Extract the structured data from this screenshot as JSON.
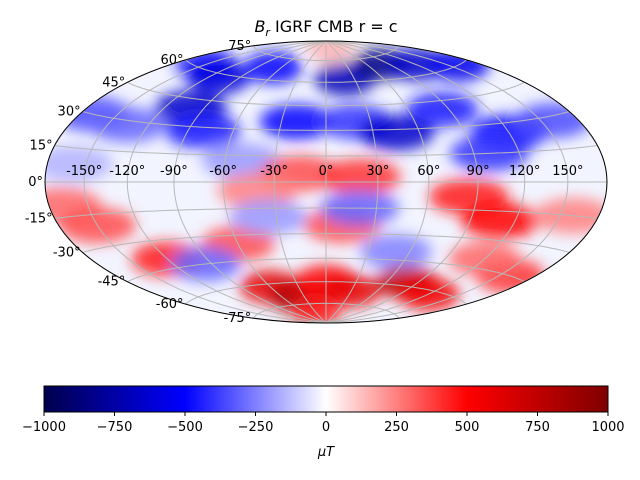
{
  "chart_data": {
    "type": "heatmap",
    "projection": "Hammer (Aitoff-Hammer), full globe",
    "title_symbol": "B",
    "title_subscript": "r",
    "title_rest": " IGRF CMB r = c",
    "longitude_ticks": [
      "-150°",
      "-120°",
      "-90°",
      "-60°",
      "-30°",
      "0°",
      "30°",
      "60°",
      "90°",
      "120°",
      "150°"
    ],
    "longitude_values": [
      -150,
      -120,
      -90,
      -60,
      -30,
      0,
      30,
      60,
      90,
      120,
      150
    ],
    "latitude_ticks": [
      "75°",
      "60°",
      "45°",
      "30°",
      "15°",
      "0°",
      "-15°",
      "-30°",
      "-45°",
      "-60°",
      "-75°"
    ],
    "latitude_values": [
      75,
      60,
      45,
      30,
      15,
      0,
      -15,
      -30,
      -45,
      -60,
      -75
    ],
    "grid": true,
    "colormap": "seismic",
    "colormap_stops": [
      "#00004c",
      "#0000ff",
      "#ffffff",
      "#ff0000",
      "#7f0000"
    ],
    "colorbar": {
      "orientation": "horizontal",
      "range": [
        -1000,
        1000
      ],
      "ticks": [
        -1000,
        -750,
        -500,
        -250,
        0,
        250,
        500,
        750,
        1000
      ],
      "tick_labels": [
        "−1000",
        "−750",
        "−500",
        "−250",
        "0",
        "250",
        "500",
        "750",
        "1000"
      ],
      "label": "μT"
    },
    "field_patches": [
      {
        "lon": -150,
        "lat": 62,
        "value": -450
      },
      {
        "lon": -110,
        "lat": 58,
        "value": -600
      },
      {
        "lon": -70,
        "lat": 68,
        "value": -500
      },
      {
        "lon": 20,
        "lat": 62,
        "value": -700
      },
      {
        "lon": 80,
        "lat": 70,
        "value": -850
      },
      {
        "lon": 120,
        "lat": 66,
        "value": -650
      },
      {
        "lon": 160,
        "lat": 60,
        "value": -550
      },
      {
        "lon": -170,
        "lat": 30,
        "value": -350
      },
      {
        "lon": -135,
        "lat": 28,
        "value": -300
      },
      {
        "lon": -100,
        "lat": 40,
        "value": -650
      },
      {
        "lon": -80,
        "lat": 28,
        "value": -450
      },
      {
        "lon": -20,
        "lat": 35,
        "value": -500
      },
      {
        "lon": 20,
        "lat": 35,
        "value": -400
      },
      {
        "lon": 45,
        "lat": 28,
        "value": -650
      },
      {
        "lon": 85,
        "lat": 40,
        "value": -450
      },
      {
        "lon": 120,
        "lat": 25,
        "value": -500
      },
      {
        "lon": 160,
        "lat": 28,
        "value": -350
      },
      {
        "lon": -160,
        "lat": 8,
        "value": -150
      },
      {
        "lon": -50,
        "lat": 12,
        "value": -200
      },
      {
        "lon": 100,
        "lat": 15,
        "value": -400
      },
      {
        "lon": 20,
        "lat": 85,
        "value": 150
      },
      {
        "lon": -15,
        "lat": 5,
        "value": 350
      },
      {
        "lon": 20,
        "lat": 3,
        "value": 400
      },
      {
        "lon": -40,
        "lat": -5,
        "value": 250
      },
      {
        "lon": 85,
        "lat": -8,
        "value": 450
      },
      {
        "lon": 110,
        "lat": -20,
        "value": 500
      },
      {
        "lon": -170,
        "lat": -10,
        "value": 300
      },
      {
        "lon": -150,
        "lat": -20,
        "value": 350
      },
      {
        "lon": 160,
        "lat": -15,
        "value": 250
      },
      {
        "lon": 160,
        "lat": -45,
        "value": 400
      },
      {
        "lon": -120,
        "lat": -40,
        "value": 450
      },
      {
        "lon": -60,
        "lat": -35,
        "value": 350
      },
      {
        "lon": 10,
        "lat": -25,
        "value": 350
      },
      {
        "lon": 20,
        "lat": -15,
        "value": -300
      },
      {
        "lon": -35,
        "lat": -20,
        "value": -200
      },
      {
        "lon": -95,
        "lat": -45,
        "value": -300
      },
      {
        "lon": 50,
        "lat": -40,
        "value": -250
      },
      {
        "lon": 120,
        "lat": -40,
        "value": 300
      },
      {
        "lon": -60,
        "lat": -62,
        "value": 600
      },
      {
        "lon": -40,
        "lat": -70,
        "value": 800
      },
      {
        "lon": 0,
        "lat": -60,
        "value": 500
      },
      {
        "lon": 30,
        "lat": -66,
        "value": 600
      },
      {
        "lon": 80,
        "lat": -58,
        "value": 750
      },
      {
        "lon": 120,
        "lat": -62,
        "value": 550
      },
      {
        "lon": -30,
        "lat": -82,
        "value": 450
      }
    ]
  }
}
